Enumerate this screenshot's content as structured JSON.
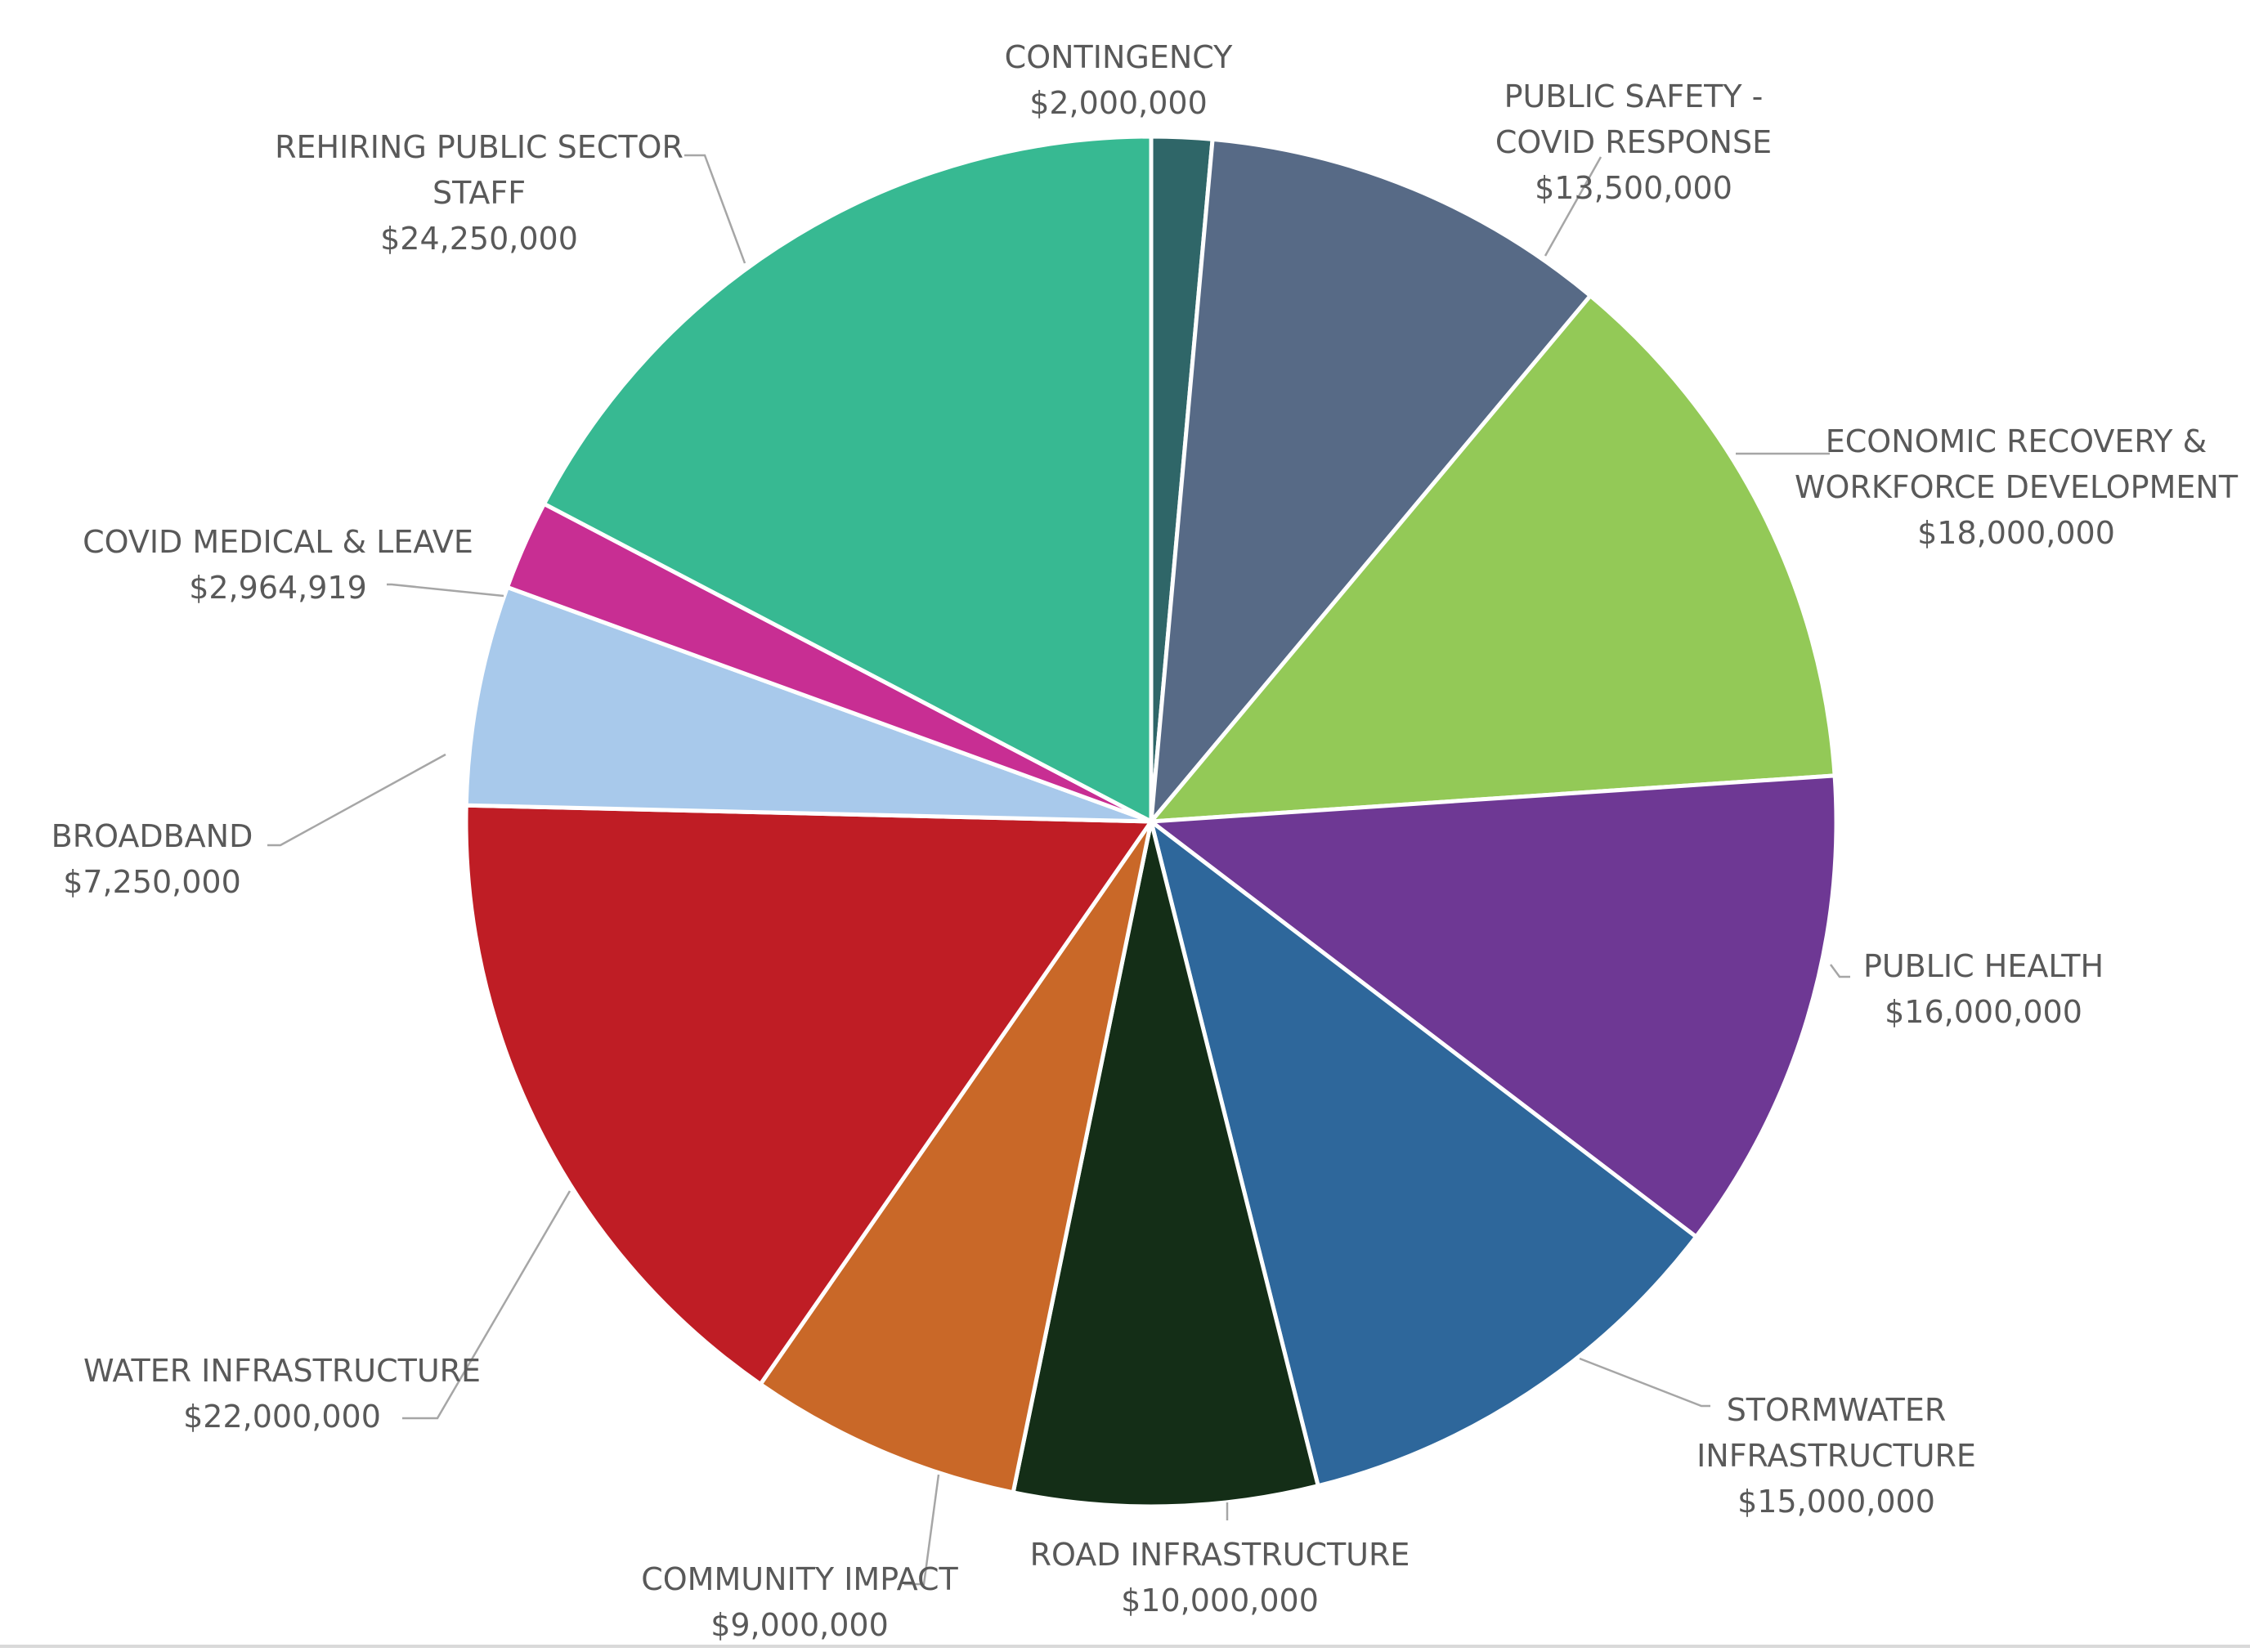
{
  "chart_data": {
    "type": "pie",
    "title": "",
    "slices": [
      {
        "name": "CONTINGENCY",
        "value": 2000000,
        "value_label": "$2,000,000",
        "color": "#2f6668",
        "label_lines": [
          "CONTINGENCY",
          "$2,000,000"
        ]
      },
      {
        "name": "PUBLIC SAFETY - COVID RESPONSE",
        "value": 13500000,
        "value_label": "$13,500,000",
        "color": "#576a86",
        "label_lines": [
          "PUBLIC SAFETY -",
          "COVID RESPONSE",
          "$13,500,000"
        ]
      },
      {
        "name": "ECONOMIC RECOVERY & WORKFORCE DEVELOPMENT",
        "value": 18000000,
        "value_label": "$18,000,000",
        "color": "#93c957",
        "label_lines": [
          "ECONOMIC RECOVERY &",
          "WORKFORCE DEVELOPMENT",
          "$18,000,000"
        ]
      },
      {
        "name": "PUBLIC HEALTH",
        "value": 16000000,
        "value_label": "$16,000,000",
        "color": "#6e3894",
        "label_lines": [
          "PUBLIC HEALTH",
          "$16,000,000"
        ]
      },
      {
        "name": "STORMWATER INFRASTRUCTURE",
        "value": 15000000,
        "value_label": "$15,000,000",
        "color": "#2e679b",
        "label_lines": [
          "STORMWATER",
          "INFRASTRUCTURE",
          "$15,000,000"
        ]
      },
      {
        "name": "ROAD INFRASTRUCTURE",
        "value": 10000000,
        "value_label": "$10,000,000",
        "color": "#142e17",
        "label_lines": [
          "ROAD INFRASTRUCTURE",
          "$10,000,000"
        ]
      },
      {
        "name": "COMMUNITY IMPACT",
        "value": 9000000,
        "value_label": "$9,000,000",
        "color": "#c96828",
        "label_lines": [
          "COMMUNITY IMPACT",
          "$9,000,000"
        ]
      },
      {
        "name": "WATER INFRASTRUCTURE",
        "value": 22000000,
        "value_label": "$22,000,000",
        "color": "#bf1d25",
        "label_lines": [
          "WATER INFRASTRUCTURE",
          "$22,000,000"
        ]
      },
      {
        "name": "BROADBAND",
        "value": 7250000,
        "value_label": "$7,250,000",
        "color": "#a8c9eb",
        "label_lines": [
          "BROADBAND",
          "$7,250,000"
        ]
      },
      {
        "name": "COVID MEDICAL & LEAVE",
        "value": 2964919,
        "value_label": "$2,964,919",
        "color": "#c82e93",
        "label_lines": [
          "COVID MEDICAL & LEAVE",
          "$2,964,919"
        ]
      },
      {
        "name": "REHIRING PUBLIC SECTOR STAFF",
        "value": 24250000,
        "value_label": "$24,250,000",
        "color": "#37b992",
        "label_lines": [
          "REHIRING PUBLIC SECTOR",
          "STAFF",
          "$24,250,000"
        ]
      }
    ],
    "start_angle": "12 o'clock",
    "direction": "clockwise",
    "legend": "none"
  }
}
